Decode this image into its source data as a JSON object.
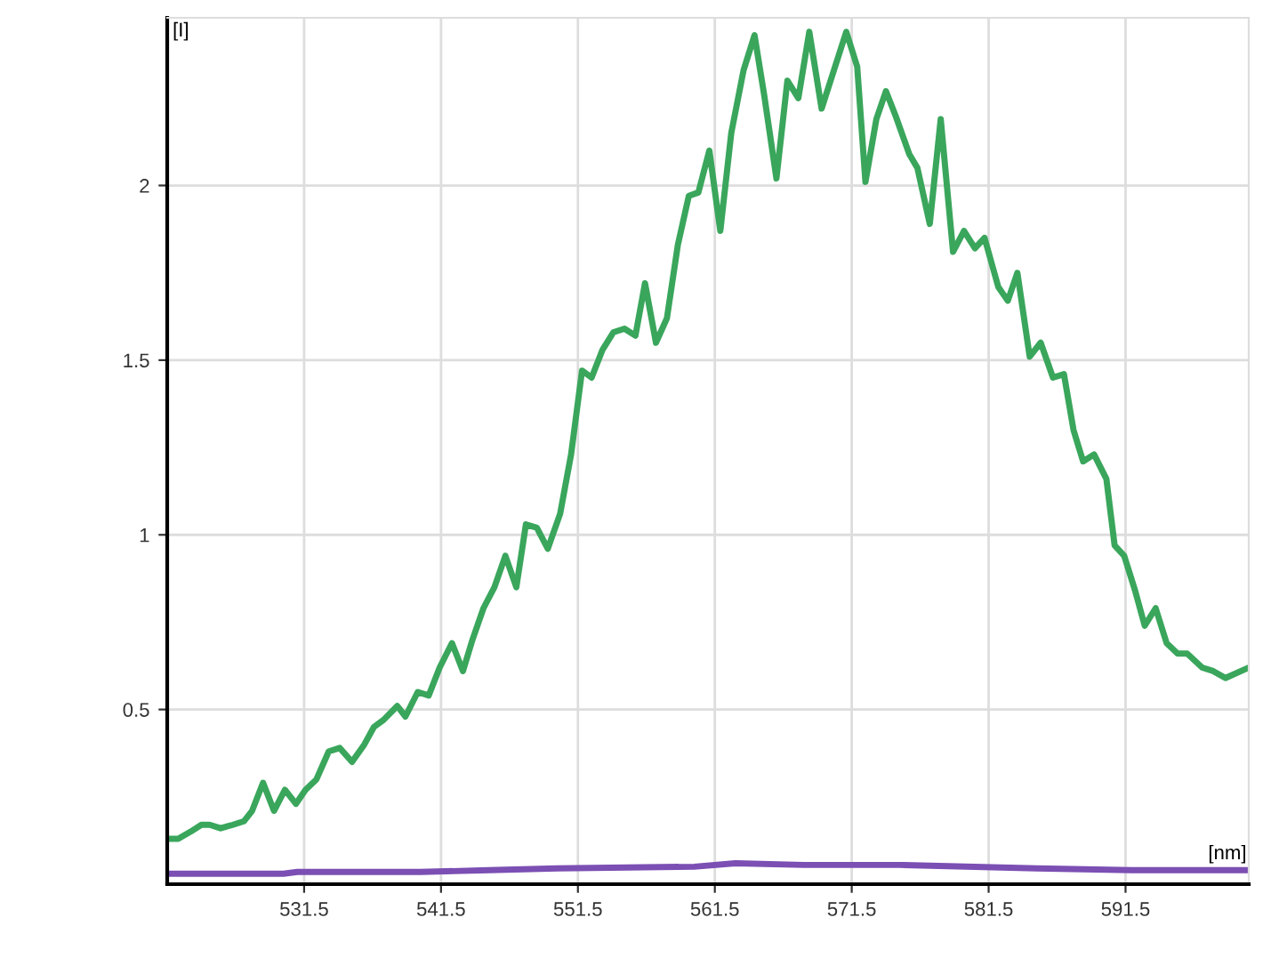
{
  "chart_data": {
    "type": "line",
    "xlabel": "[nm]",
    "ylabel": "[I]",
    "xlim": [
      521.5,
      600.5
    ],
    "xticks": [
      531.5,
      541.5,
      551.5,
      561.5,
      571.5,
      581.5,
      591.5
    ],
    "ylim": [
      0,
      2.48
    ],
    "yticks": [
      0.5,
      1,
      1.5,
      2
    ],
    "grid": true,
    "legend": false,
    "marker": "none",
    "line_style": "solid",
    "series": [
      {
        "color": "#3aa65c",
        "x": [
          521.5,
          522.3,
          523.2,
          524.0,
          524.6,
          525.4,
          526.3,
          527.1,
          527.7,
          528.5,
          529.3,
          530.1,
          530.9,
          531.6,
          532.4,
          533.3,
          534.1,
          535.0,
          535.9,
          536.6,
          537.3,
          538.3,
          538.9,
          539.8,
          540.6,
          541.4,
          542.3,
          543.1,
          543.8,
          544.6,
          545.4,
          546.2,
          547.0,
          547.7,
          548.5,
          549.3,
          550.2,
          551.0,
          551.8,
          552.5,
          553.3,
          554.1,
          554.9,
          555.7,
          556.4,
          557.2,
          558.0,
          558.8,
          559.6,
          560.3,
          561.1,
          561.9,
          562.7,
          563.6,
          564.4,
          565.1,
          566.0,
          566.8,
          567.6,
          568.4,
          569.3,
          571.1,
          571.9,
          572.5,
          573.3,
          574.0,
          574.7,
          575.7,
          576.3,
          577.2,
          578.0,
          578.9,
          579.7,
          580.5,
          581.2,
          582.2,
          582.9,
          583.6,
          584.5,
          585.3,
          586.2,
          587.0,
          587.7,
          588.4,
          589.2,
          590.1,
          590.7,
          591.4,
          592.2,
          592.9,
          593.7,
          594.5,
          595.3,
          596.0,
          597.1,
          597.9,
          598.8,
          600.5
        ],
        "values": [
          0.13,
          0.13,
          0.15,
          0.17,
          0.17,
          0.16,
          0.17,
          0.18,
          0.21,
          0.29,
          0.21,
          0.27,
          0.23,
          0.27,
          0.3,
          0.38,
          0.39,
          0.35,
          0.4,
          0.45,
          0.47,
          0.51,
          0.48,
          0.55,
          0.54,
          0.62,
          0.69,
          0.61,
          0.7,
          0.79,
          0.85,
          0.94,
          0.85,
          1.03,
          1.02,
          0.96,
          1.06,
          1.23,
          1.47,
          1.45,
          1.53,
          1.58,
          1.59,
          1.57,
          1.72,
          1.55,
          1.62,
          1.83,
          1.97,
          1.98,
          2.1,
          1.87,
          2.15,
          2.33,
          2.43,
          2.26,
          2.02,
          2.3,
          2.25,
          2.44,
          2.22,
          2.44,
          2.34,
          2.01,
          2.19,
          2.27,
          2.2,
          2.09,
          2.05,
          1.89,
          2.19,
          1.81,
          1.87,
          1.82,
          1.85,
          1.71,
          1.67,
          1.75,
          1.51,
          1.55,
          1.45,
          1.46,
          1.3,
          1.21,
          1.23,
          1.16,
          0.97,
          0.94,
          0.84,
          0.74,
          0.79,
          0.69,
          0.66,
          0.66,
          0.62,
          0.61,
          0.59,
          0.62
        ]
      },
      {
        "color": "#7b4fb3",
        "x": [
          521.5,
          530.0,
          531.0,
          540.0,
          545.0,
          550.0,
          560.0,
          563.0,
          568.0,
          575.0,
          585.0,
          592.0,
          600.5
        ],
        "values": [
          0.03,
          0.03,
          0.035,
          0.035,
          0.04,
          0.045,
          0.05,
          0.06,
          0.055,
          0.055,
          0.045,
          0.04,
          0.04
        ]
      }
    ]
  }
}
